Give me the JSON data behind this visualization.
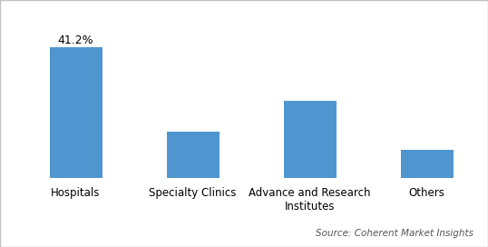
{
  "categories": [
    "Hospitals",
    "Specialty Clinics",
    "Advance and Research\nInstitutes",
    "Others"
  ],
  "values": [
    41.2,
    14.5,
    24.5,
    9.0
  ],
  "bar_color": "#4F96D0",
  "annotation_label": "41.2%",
  "annotation_bar_index": 0,
  "source_text": "Source: Coherent Market Insights",
  "ylim": [
    0,
    50
  ],
  "bar_width": 0.45,
  "background_color": "#ffffff",
  "spine_color": "#c0c0c0",
  "border_color": "#c0c0c0",
  "tick_label_fontsize": 8.5,
  "annotation_fontsize": 9,
  "source_fontsize": 7.5
}
